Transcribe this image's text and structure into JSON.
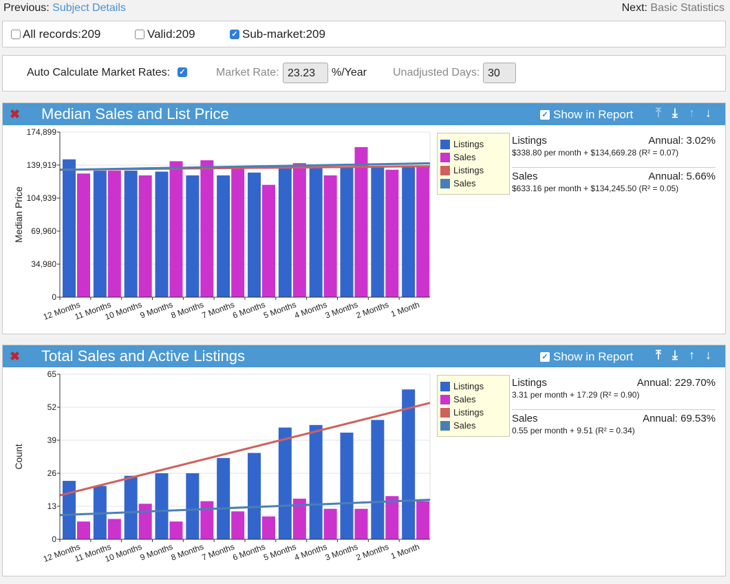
{
  "nav": {
    "prev_label": "Previous:",
    "prev_link": "Subject Details",
    "next_label": "Next:",
    "next_link": "Basic Statistics"
  },
  "filters": [
    {
      "label": "All records:209",
      "checked": false
    },
    {
      "label": "Valid:209",
      "checked": false
    },
    {
      "label": "Sub-market:209",
      "checked": true
    }
  ],
  "rates": {
    "auto_label": "Auto Calculate Market Rates:",
    "auto_checked": true,
    "market_rate_label": "Market Rate:",
    "market_rate_value": "23.23",
    "market_rate_unit": "%/Year",
    "unadjusted_label": "Unadjusted Days:",
    "unadjusted_value": "30"
  },
  "panels": [
    {
      "title": "Median Sales and List Price",
      "show_in_report": "Show in Report",
      "icons": [
        "close-icon",
        "move-top-icon",
        "move-bottom-icon",
        "move-up-icon",
        "move-down-icon"
      ],
      "legend": [
        {
          "label": "Listings",
          "color": "#3366cc"
        },
        {
          "label": "Sales",
          "color": "#cc33cc"
        },
        {
          "label": "Listings",
          "color": "#d0605e"
        },
        {
          "label": "Sales",
          "color": "#4a7fb5"
        }
      ],
      "stats": [
        {
          "name": "Listings",
          "annual": "Annual: 3.02%",
          "formula": "$338.80 per month + $134,669.28 (R² = 0.07)"
        },
        {
          "name": "Sales",
          "annual": "Annual: 5.66%",
          "formula": "$633.16 per month + $134,245.50 (R² = 0.05)"
        }
      ]
    },
    {
      "title": "Total Sales and Active Listings",
      "show_in_report": "Show in Report",
      "icons": [
        "close-icon",
        "move-top-icon",
        "move-bottom-icon",
        "move-up-icon",
        "move-down-icon"
      ],
      "legend": [
        {
          "label": "Listings",
          "color": "#3366cc"
        },
        {
          "label": "Sales",
          "color": "#cc33cc"
        },
        {
          "label": "Listings",
          "color": "#d0605e"
        },
        {
          "label": "Sales",
          "color": "#4a7fb5"
        }
      ],
      "stats": [
        {
          "name": "Listings",
          "annual": "Annual: 229.70%",
          "formula": "3.31 per month + 17.29 (R² = 0.90)"
        },
        {
          "name": "Sales",
          "annual": "Annual: 69.53%",
          "formula": "0.55 per month + 9.51 (R² = 0.34)"
        }
      ]
    }
  ],
  "chart_data": [
    {
      "type": "bar",
      "ylabel": "Median Price",
      "ylim": [
        0,
        174899
      ],
      "yticks": [
        "0",
        "34,980",
        "69,960",
        "104,939",
        "139,919",
        "174,899"
      ],
      "categories": [
        "12 Months",
        "11 Months",
        "10 Months",
        "9 Months",
        "8 Months",
        "7 Months",
        "6 Months",
        "5 Months",
        "4 Months",
        "3 Months",
        "2 Months",
        "1 Month"
      ],
      "series": [
        {
          "name": "Listings",
          "color": "#3366cc",
          "values": [
            146000,
            134000,
            134000,
            133000,
            129000,
            129000,
            132000,
            137000,
            138000,
            137000,
            139000,
            139000
          ]
        },
        {
          "name": "Sales",
          "color": "#cc33cc",
          "values": [
            131000,
            134000,
            129000,
            144000,
            145000,
            136000,
            119000,
            142000,
            129000,
            159000,
            135000,
            139000
          ]
        }
      ],
      "trendlines": [
        {
          "name": "Listings",
          "color": "#d0605e",
          "start": 135008,
          "end": 138735
        },
        {
          "name": "Sales",
          "color": "#4a7fb5",
          "start": 134879,
          "end": 141843
        }
      ],
      "grid": true
    },
    {
      "type": "bar",
      "ylabel": "Count",
      "ylim": [
        0,
        65
      ],
      "yticks": [
        "0",
        "13",
        "26",
        "39",
        "52",
        "65"
      ],
      "categories": [
        "12 Months",
        "11 Months",
        "10 Months",
        "9 Months",
        "8 Months",
        "7 Months",
        "6 Months",
        "5 Months",
        "4 Months",
        "3 Months",
        "2 Months",
        "1 Month"
      ],
      "series": [
        {
          "name": "Listings",
          "color": "#3366cc",
          "values": [
            23,
            21,
            25,
            26,
            26,
            32,
            34,
            44,
            45,
            42,
            47,
            59
          ]
        },
        {
          "name": "Sales",
          "color": "#cc33cc",
          "values": [
            7,
            8,
            14,
            7,
            15,
            11,
            9,
            16,
            12,
            12,
            17,
            15
          ]
        }
      ],
      "trendlines": [
        {
          "name": "Listings",
          "color": "#d0605e",
          "start": 17.29,
          "end": 53.7
        },
        {
          "name": "Sales",
          "color": "#4a7fb5",
          "start": 9.51,
          "end": 15.56
        }
      ],
      "grid": true
    }
  ]
}
